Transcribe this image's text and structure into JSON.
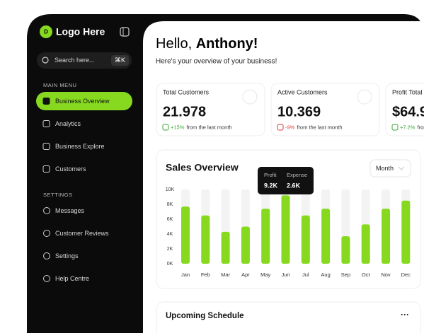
{
  "sidebar": {
    "logo_letter": "D",
    "logo": "Logo Here",
    "search": "Search here...",
    "shortcut": "⌘K",
    "main_menu": "MAIN MENU",
    "menu": [
      "Business Overview",
      "Analytics",
      "Business Explore",
      "Customers"
    ],
    "settings_heading": "SETTINGS",
    "settings": [
      "Messages",
      "Customer Reviews",
      "Settings",
      "Help Centre"
    ]
  },
  "header": {
    "greeting": "Hello,",
    "name": "Anthony!",
    "subtitle": "Here's your overview of your business!"
  },
  "cards": [
    {
      "title": "Total Customers",
      "value": "21.978",
      "change": "+15%",
      "note": "from the last month",
      "trend": "up"
    },
    {
      "title": "Active Customers",
      "value": "10.369",
      "change": "-9%",
      "note": "from the last month",
      "trend": "down"
    },
    {
      "title": "Profit Total",
      "value": "$64.9",
      "change": "+7.2%",
      "note": "from the last month",
      "trend": "up"
    }
  ],
  "sales": {
    "period": "Month",
    "tooltip": {
      "profit_label": "Profit",
      "profit": "9.2K",
      "expense_label": "Expense",
      "expense": "2.6K"
    }
  },
  "chart_data": {
    "type": "bar",
    "title": "Sales Overview",
    "color": "#86d91f",
    "categories": [
      "Jan",
      "Feb",
      "Mar",
      "Apr",
      "May",
      "Jun",
      "Jul",
      "Aug",
      "Sep",
      "Oct",
      "Nov",
      "Dec"
    ],
    "values": [
      7700,
      6500,
      4300,
      5000,
      7400,
      9200,
      6500,
      7400,
      3700,
      5300,
      7400,
      8500
    ],
    "ylim": [
      0,
      10000
    ],
    "yticks": [
      {
        "value": 0,
        "label": "0K"
      },
      {
        "value": 2000,
        "label": "2K"
      },
      {
        "value": 4000,
        "label": "4K"
      },
      {
        "value": 6000,
        "label": "6K"
      },
      {
        "value": 8000,
        "label": "8K"
      },
      {
        "value": 10000,
        "label": "10K"
      }
    ]
  },
  "schedule": {
    "title": "Upcoming Schedule",
    "more": "···"
  }
}
